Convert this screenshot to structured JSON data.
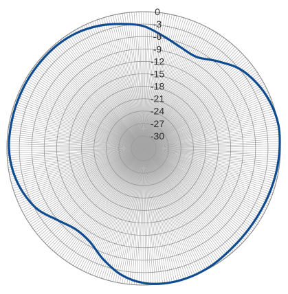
{
  "chart_data": {
    "type": "polar-line",
    "title": "",
    "radial_axis": {
      "min": -33,
      "max": 0,
      "ticks": [
        0,
        -3,
        -6,
        -9,
        -12,
        -15,
        -18,
        -21,
        -24,
        -27,
        -30
      ],
      "tick_labels": [
        "0",
        "-3",
        "-6",
        "-9",
        "-12",
        "-15",
        "-18",
        "-21",
        "-24",
        "-27",
        "-30"
      ]
    },
    "angular_axis": {
      "range_deg": [
        0,
        360
      ],
      "grid_step_deg": 1
    },
    "grid": true,
    "series": [
      {
        "color": "#0f4b8f",
        "angle_deg": [
          0,
          10,
          20,
          30,
          40,
          50,
          60,
          70,
          80,
          90,
          100,
          110,
          120,
          130,
          140,
          150,
          160,
          170,
          180,
          190,
          200,
          210,
          220,
          230,
          240,
          250,
          260,
          270,
          280,
          290,
          300,
          310,
          320,
          330,
          340,
          350
        ],
        "value_db": [
          -3.5,
          -5.5,
          -7.0,
          -7.5,
          -5.5,
          -3.0,
          -1.5,
          -0.5,
          0.0,
          -0.2,
          -0.5,
          -0.8,
          -1.0,
          -1.0,
          -0.8,
          -0.3,
          0.0,
          0.0,
          -0.5,
          -2.0,
          -4.5,
          -7.0,
          -7.5,
          -6.0,
          -3.5,
          -2.0,
          -1.0,
          -0.5,
          -0.5,
          -0.5,
          -0.5,
          -0.5,
          -0.5,
          -0.8,
          -1.5,
          -2.5
        ]
      }
    ]
  }
}
